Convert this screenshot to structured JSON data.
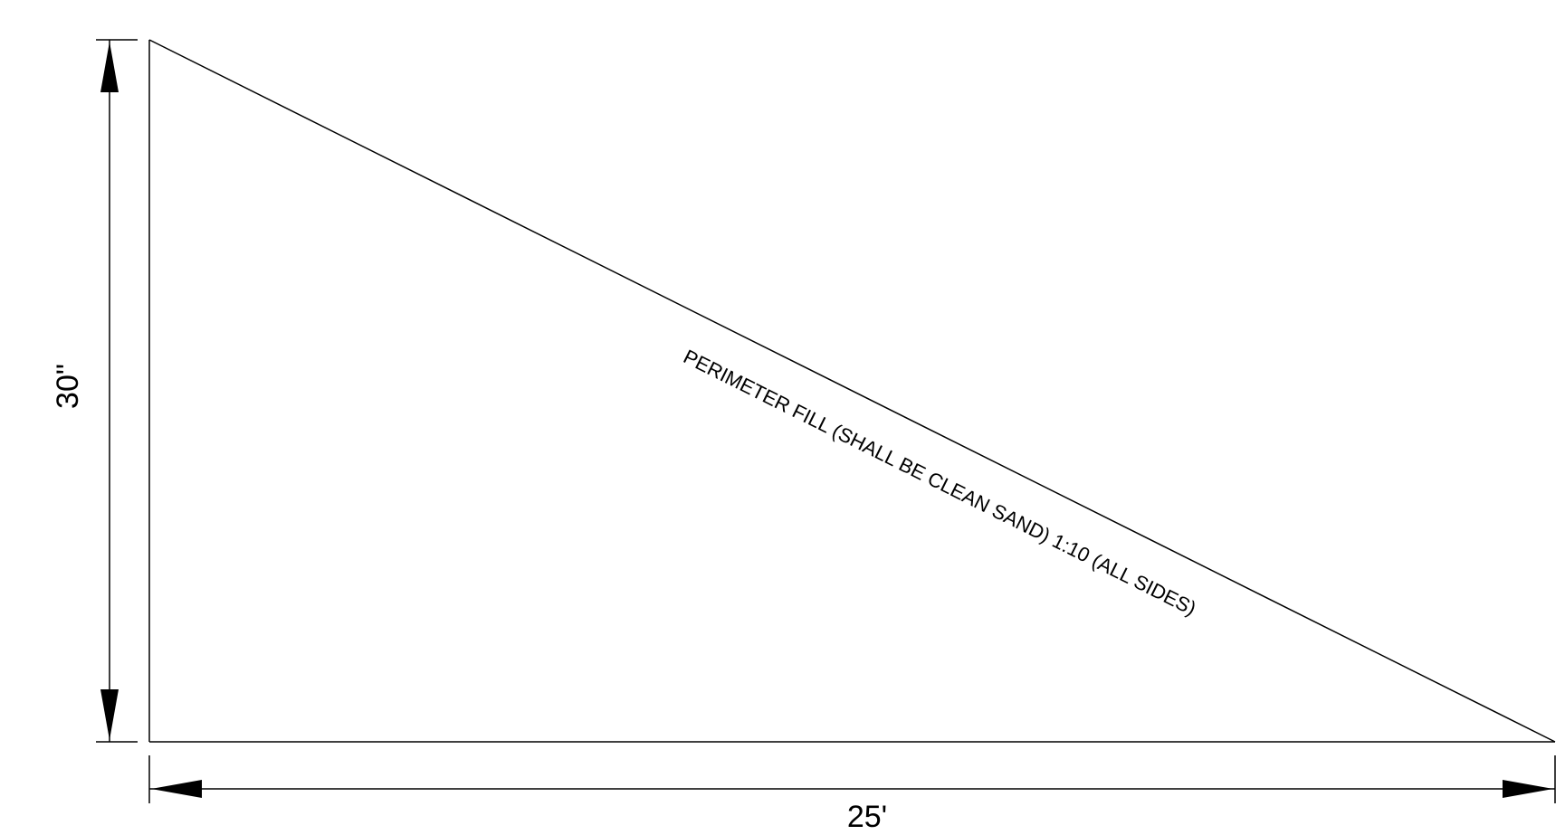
{
  "diagram": {
    "height_label": "30\"",
    "length_label": "25'",
    "slope_note": "PERIMETER FILL (SHALL BE CLEAN SAND) 1:10 (ALL SIDES)"
  }
}
